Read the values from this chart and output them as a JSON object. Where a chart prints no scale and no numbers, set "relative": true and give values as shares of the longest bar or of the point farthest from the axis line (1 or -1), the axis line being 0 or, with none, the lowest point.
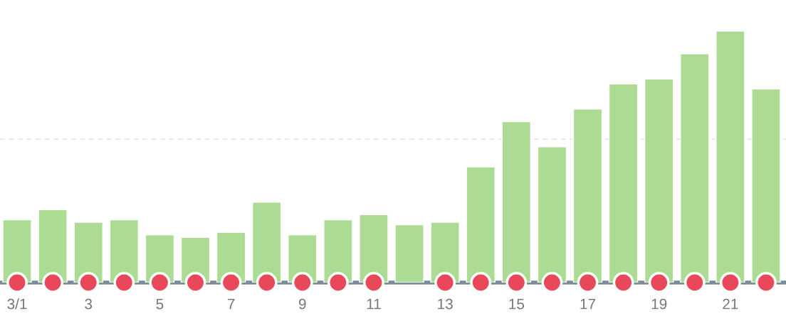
{
  "chart_data": {
    "type": "bar",
    "relative": true,
    "categories": [
      "3/1",
      null,
      "3",
      null,
      "5",
      null,
      "7",
      null,
      "9",
      null,
      "11",
      null,
      "13",
      null,
      "15",
      null,
      "17",
      null,
      "19",
      null,
      "21",
      null
    ],
    "series": [
      {
        "color": "#acdb93",
        "values": [
          0.25,
          0.29,
          0.24,
          0.25,
          0.19,
          0.18,
          0.2,
          0.32,
          0.19,
          0.25,
          0.27,
          0.23,
          0.24,
          0.46,
          0.64,
          0.54,
          0.69,
          0.79,
          0.81,
          0.91,
          1,
          0.77
        ]
      },
      {
        "type": "scatter",
        "color": "#e8485a",
        "marker": "circle",
        "values": [
          0,
          0,
          0,
          0,
          0,
          0,
          0,
          0,
          0,
          0,
          0,
          null,
          0,
          0,
          0,
          0,
          0,
          0,
          0,
          0,
          0,
          0
        ]
      }
    ],
    "ref_lines": [
      {
        "axis": "y",
        "value": 0.57,
        "color": "#dddddd",
        "line_style": "dashed"
      }
    ],
    "grid": false,
    "legend": false
  }
}
